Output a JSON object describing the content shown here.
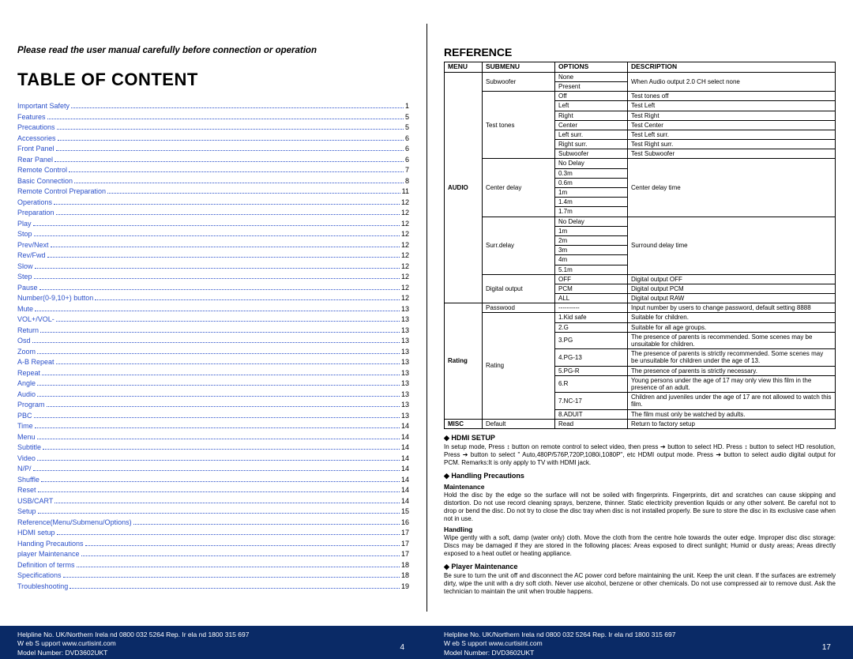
{
  "colors": {
    "toc_link": "#2a4fc9",
    "footer_bg": "#0a2a66",
    "footer_text": "#ffffff",
    "border": "#000000",
    "background": "#ffffff"
  },
  "left": {
    "instruction": "Please read the user manual carefully before connection or operation",
    "title": "TABLE OF CONTENT",
    "toc": [
      {
        "label": "Important Safety",
        "page": "1"
      },
      {
        "label": "Features",
        "page": "5"
      },
      {
        "label": "Precautions",
        "page": "5"
      },
      {
        "label": "Accessories",
        "page": "6"
      },
      {
        "label": "Front Panel",
        "page": "6"
      },
      {
        "label": "Rear Panel",
        "page": "6"
      },
      {
        "label": "Remote Control",
        "page": "7"
      },
      {
        "label": "Basic Connection",
        "page": "8"
      },
      {
        "label": "Remote Control Preparation",
        "page": "11"
      },
      {
        "label": "Operations",
        "page": "12"
      },
      {
        "label": "Preparation",
        "page": "12"
      },
      {
        "label": "Play",
        "page": "12"
      },
      {
        "label": "Stop",
        "page": "12"
      },
      {
        "label": "Prev/Next",
        "page": "12"
      },
      {
        "label": "Rev/Fwd",
        "page": "12"
      },
      {
        "label": "Slow",
        "page": "12"
      },
      {
        "label": "Step",
        "page": "12"
      },
      {
        "label": "Pause",
        "page": "12"
      },
      {
        "label": "Number(0-9,10+) button",
        "page": "12"
      },
      {
        "label": "Mute",
        "page": "13"
      },
      {
        "label": "VOL+/VOL-",
        "page": "13"
      },
      {
        "label": "Return",
        "page": "13"
      },
      {
        "label": "Osd",
        "page": "13"
      },
      {
        "label": "Zoom",
        "page": "13"
      },
      {
        "label": "A-B Repeat",
        "page": "13"
      },
      {
        "label": "Repeat",
        "page": "13"
      },
      {
        "label": "Angle",
        "page": "13"
      },
      {
        "label": "Audio",
        "page": "13"
      },
      {
        "label": "Program",
        "page": "13"
      },
      {
        "label": "PBC",
        "page": "13"
      },
      {
        "label": "Time",
        "page": "14"
      },
      {
        "label": "Menu",
        "page": "14"
      },
      {
        "label": "Subtitle",
        "page": "14"
      },
      {
        "label": "Video",
        "page": "14"
      },
      {
        "label": "N/P/",
        "page": "14"
      },
      {
        "label": "Shuffle",
        "page": "14"
      },
      {
        "label": "Reset",
        "page": "14"
      },
      {
        "label": "USB/CART",
        "page": "14"
      },
      {
        "label": "Setup",
        "page": "15"
      },
      {
        "label": "Reference(Menu/Submenu/Options)",
        "page": "16"
      },
      {
        "label": "HDMI setup",
        "page": "17"
      },
      {
        "label": "Handing Precautions",
        "page": "17"
      },
      {
        "label": "player Maintenance",
        "page": "17"
      },
      {
        "label": "Definition of terms",
        "page": "18"
      },
      {
        "label": "Specifications",
        "page": "18"
      },
      {
        "label": "Troubleshooting",
        "page": "19"
      }
    ],
    "footer": {
      "line1": "Helpline No. UK/Northern Irela nd  0800 032 5264    Rep. Ir ela nd  1800 315 697",
      "line2": "W eb S upport www.curtisint.com",
      "line3": "Model Number:      DVD3602UKT",
      "page_num": "4"
    }
  },
  "right": {
    "title": "REFERENCE",
    "headers": {
      "menu": "MENU",
      "submenu": "SUBMENU",
      "options": "OPTIONS",
      "desc": "DESCRIPTION"
    },
    "table": {
      "audio_label": "AUDIO",
      "subwoofer": {
        "submenu": "Subwoofer",
        "opts": [
          "None",
          "Present"
        ],
        "desc": "When Audio output 2.0 CH select none"
      },
      "testtones": {
        "submenu": "Test tones",
        "rows": [
          {
            "opt": "Off",
            "desc": "Test tones off"
          },
          {
            "opt": "Left",
            "desc": "Test Left"
          },
          {
            "opt": "Right",
            "desc": "Test Right"
          },
          {
            "opt": "Center",
            "desc": "Test Center"
          },
          {
            "opt": "Left surr.",
            "desc": "Test Left surr."
          },
          {
            "opt": "Right surr.",
            "desc": "Test Right surr."
          },
          {
            "opt": "Subwoofer",
            "desc": "Test Subwoofer"
          }
        ]
      },
      "centerdelay": {
        "submenu": "Center delay",
        "opts": [
          "No Delay",
          "0.3m",
          "0.6m",
          "1m",
          "1.4m",
          "1.7m"
        ],
        "desc": "Center delay time"
      },
      "surrdelay": {
        "submenu": "Surr.delay",
        "opts": [
          "No Delay",
          "1m",
          "2m",
          "3m",
          "4m",
          "5.1m"
        ],
        "desc": "Surround delay time"
      },
      "digout": {
        "submenu": "Digital output",
        "rows": [
          {
            "opt": "OFF",
            "desc": "Digital output OFF"
          },
          {
            "opt": "PCM",
            "desc": "Digital output PCM"
          },
          {
            "opt": "ALL",
            "desc": "Digital output RAW"
          }
        ]
      },
      "rating_label": "Rating",
      "password": {
        "submenu": "Passwood",
        "opt": "----------",
        "desc": "Input number by users to change password, default setting 8888"
      },
      "rating": {
        "submenu": "Rating",
        "rows": [
          {
            "opt": "1.Kid safe",
            "desc": "Suitable for children."
          },
          {
            "opt": "2.G",
            "desc": "Suitable for all age groups."
          },
          {
            "opt": "3.PG",
            "desc": "The presence of parents is recommended. Some scenes may be unsuitable for children."
          },
          {
            "opt": "4.PG-13",
            "desc": "The presence of parents is strictly recommended. Some scenes may be unsuitable for children under the age of 13."
          },
          {
            "opt": "5.PG-R",
            "desc": "The presence of parents is strictly necessary."
          },
          {
            "opt": "6.R",
            "desc": "Young persons under the age of 17 may only view this film in the presence of an adult."
          },
          {
            "opt": "7.NC-17",
            "desc": "Children and juveniles under the age of 17 are not allowed to watch this film."
          },
          {
            "opt": "8.ADUIT",
            "desc": "The film must only be watched by adults."
          }
        ]
      },
      "misc": {
        "menu": "MISC",
        "submenu": "Default",
        "opt": "Read",
        "desc": "Return to factory setup"
      }
    },
    "hdmi": {
      "heading": "HDMI SETUP",
      "body": "In setup mode, Press ↕ button on remote control to select video, then press ➔ button to select HD. Press ↕ button to select HD resolution, Press ➔ button to select \" Auto,480P/576P,720P,1080i,1080P\", etc HDMI output mode. Press ➔ button to select audio digital output for PCM.\nRemarks:It is only apply to TV with HDMI jack."
    },
    "handling": {
      "heading": "Handling Precautions",
      "sub1": "Maintenance",
      "body1": "Hold the disc by the edge so the surface will not be soiled with fingerprints. Fingerprints, dirt and scratches can cause skipping and distortion. Do not use record cleaning sprays, benzene, thinner. Static electricity prevention liquids or any other solvent. Be careful not to drop or bend the disc. Do not try to close the disc tray when disc is not installed properly. Be sure to store the disc in its exclusive case when not in use.",
      "sub2": "Handling",
      "body2": "Wipe gently with a soft, damp (water only) cloth. Move the cloth from the centre hole towards the outer edge. Improper disc disc storage: Discs may be damaged if they are stored in the following places: Areas exposed to direct sunlight; Humid or dusty areas; Areas directly exposed to a heat outlet or heating appliance."
    },
    "player": {
      "heading": "Player Maintenance",
      "body": "Be sure to turn the unit off and disconnect the AC power cord before maintaining the unit. Keep the unit clean. If the surfaces are extremely dirty, wipe the unit with a dry soft cloth. Never use alcohol, benzene or other chemicals. Do not use compressed air to remove dust. Ask the technician to maintain the unit when trouble happens."
    },
    "footer": {
      "line1": "Helpline No. UK/Northern Irela nd  0800 032 5264    Rep. Ir ela nd  1800 315 697",
      "line2": "W eb S upport www.curtisint.com",
      "line3": "Model Number:      DVD3602UKT",
      "page_num": "17"
    }
  }
}
